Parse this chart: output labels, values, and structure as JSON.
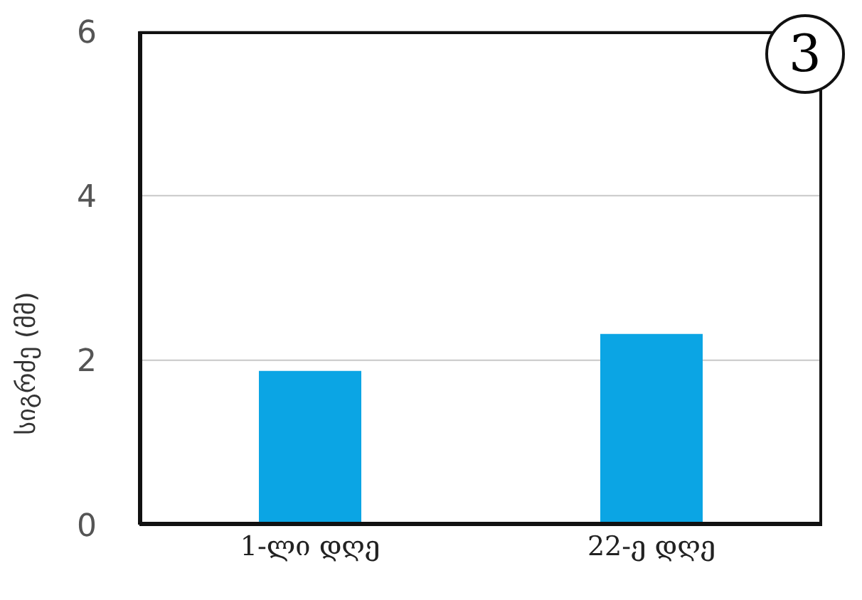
{
  "chart_data": {
    "type": "bar",
    "ylabel": "სიგრძე (მმ)",
    "categories": [
      "1-ლი დღე",
      "22-ე დღე"
    ],
    "values": [
      1.87,
      2.32
    ],
    "color": "#0ba5e4",
    "ylim": [
      0,
      6
    ],
    "yticks": [
      0,
      2,
      4,
      6
    ],
    "grid": "y",
    "annotations": [
      "3"
    ]
  }
}
